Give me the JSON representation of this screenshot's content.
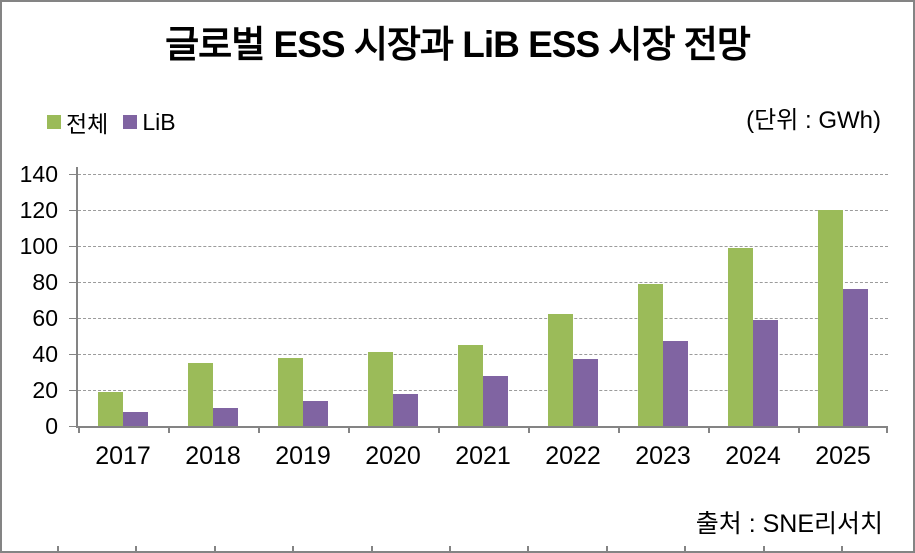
{
  "title": "글로벌 ESS 시장과 LiB ESS 시장 전망",
  "unit_label": "(단위 : GWh)",
  "source": "출처 : SNE리서치",
  "legend": [
    {
      "label": "전체",
      "color": "#9BBB59"
    },
    {
      "label": "LiB",
      "color": "#8064A2"
    }
  ],
  "colors": {
    "total_series": "#9BBB59",
    "lib_series": "#8064A2",
    "gridline": "#9b9b9b",
    "axis": "#848484",
    "text": "#000000"
  },
  "chart_data": {
    "type": "bar",
    "title": "글로벌 ESS 시장과 LiB ESS 시장 전망",
    "unit": "GWh",
    "source": "출처 : SNE리서치",
    "categories": [
      "2017",
      "2018",
      "2019",
      "2020",
      "2021",
      "2022",
      "2023",
      "2024",
      "2025"
    ],
    "series": [
      {
        "name": "전체",
        "color": "#9BBB59",
        "values": [
          19,
          35,
          38,
          41,
          45,
          62,
          79,
          99,
          120
        ]
      },
      {
        "name": "LiB",
        "color": "#8064A2",
        "values": [
          8,
          10,
          14,
          18,
          28,
          37,
          47,
          59,
          76
        ]
      }
    ],
    "xlabel": "",
    "ylabel": "",
    "ylim": [
      0,
      140
    ],
    "ytick_step": 20,
    "yticks": [
      0,
      20,
      40,
      60,
      80,
      100,
      120,
      140
    ],
    "grid": "horizontal-dashed",
    "legend_position": "top-left"
  }
}
